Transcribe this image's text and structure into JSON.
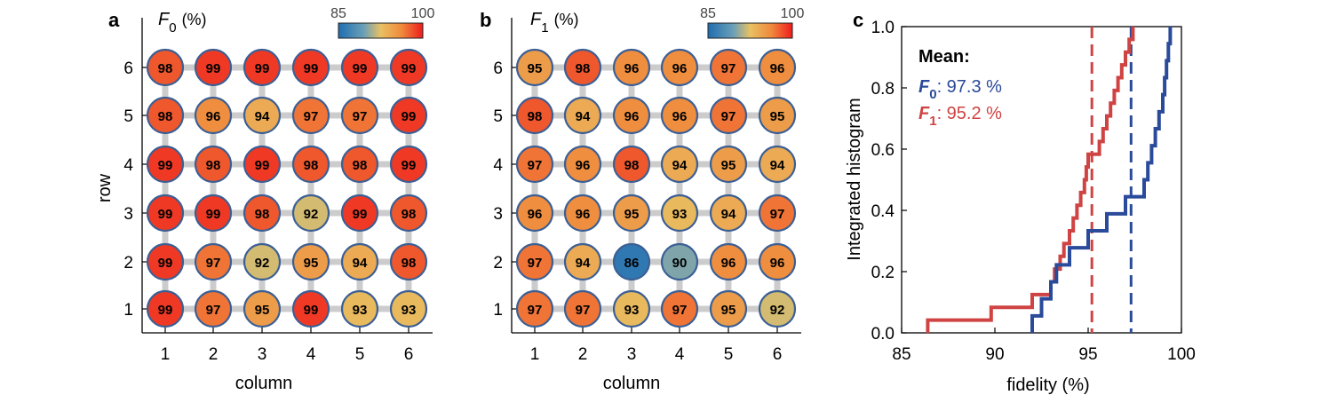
{
  "colors": {
    "grid_line": "#cccccc",
    "node_border": "#3b5f94",
    "f0_line": "#2a4a9a",
    "f1_line": "#cf4343",
    "colormap": [
      "#1f6db0",
      "#6aa0b8",
      "#e8c063",
      "#f08a3c",
      "#ee1c1c"
    ]
  },
  "chart_data": [
    {
      "type": "heatmap",
      "panel_label": "a",
      "title_main": "F",
      "title_sub": "0",
      "title_unit": "(%)",
      "colorbar": {
        "min": 85,
        "max": 100,
        "min_label": "85",
        "max_label": "100"
      },
      "xlabel": "column",
      "ylabel": "row",
      "columns": [
        "1",
        "2",
        "3",
        "4",
        "5",
        "6"
      ],
      "rows": [
        "1",
        "2",
        "3",
        "4",
        "5",
        "6"
      ],
      "values_by_row": [
        [
          99,
          97,
          95,
          99,
          93,
          93
        ],
        [
          99,
          97,
          92,
          95,
          94,
          98
        ],
        [
          99,
          99,
          98,
          92,
          99,
          98
        ],
        [
          99,
          98,
          99,
          98,
          98,
          99
        ],
        [
          98,
          96,
          94,
          97,
          97,
          99
        ],
        [
          98,
          99,
          99,
          99,
          99,
          99
        ]
      ]
    },
    {
      "type": "heatmap",
      "panel_label": "b",
      "title_main": "F",
      "title_sub": "1",
      "title_unit": "(%)",
      "colorbar": {
        "min": 85,
        "max": 100,
        "min_label": "85",
        "max_label": "100"
      },
      "xlabel": "column",
      "ylabel": "",
      "columns": [
        "1",
        "2",
        "3",
        "4",
        "5",
        "6"
      ],
      "rows": [
        "1",
        "2",
        "3",
        "4",
        "5",
        "6"
      ],
      "values_by_row": [
        [
          97,
          97,
          93,
          97,
          95,
          92
        ],
        [
          97,
          94,
          86,
          90,
          96,
          96
        ],
        [
          96,
          96,
          95,
          93,
          94,
          97
        ],
        [
          97,
          96,
          98,
          94,
          95,
          94
        ],
        [
          98,
          94,
          96,
          96,
          97,
          95
        ],
        [
          95,
          98,
          96,
          96,
          97,
          96
        ]
      ]
    },
    {
      "type": "line",
      "panel_label": "c",
      "xlabel": "fidelity (%)",
      "ylabel": "Integrated histogram",
      "xlim": [
        85,
        100
      ],
      "ylim": [
        0,
        1
      ],
      "xticks": [
        "85",
        "90",
        "95",
        "100"
      ],
      "yticks": [
        "0.0",
        "0.2",
        "0.4",
        "0.6",
        "0.8",
        "1.0"
      ],
      "legend_title": "Mean:",
      "series": [
        {
          "name_main": "F",
          "name_sub": "0",
          "mean_label": ":  97.3 %",
          "mean": 97.3,
          "color_key": "f0_line",
          "values": [
            92,
            92.5,
            93,
            93.3,
            94,
            95,
            96,
            97,
            98,
            98.2,
            98.4,
            98.6,
            98.8,
            99,
            99.1,
            99.2,
            99.3,
            99.4
          ]
        },
        {
          "name_main": "F",
          "name_sub": "1",
          "mean_label": ":  95.2 %",
          "mean": 95.2,
          "color_key": "f1_line",
          "values": [
            86.4,
            89.8,
            92,
            93,
            93.2,
            93.5,
            93.7,
            94,
            94.2,
            94.4,
            94.6,
            94.8,
            94.9,
            95,
            95.6,
            95.8,
            96,
            96.2,
            96.4,
            96.6,
            96.8,
            97,
            97.2,
            97.4
          ]
        }
      ]
    }
  ]
}
